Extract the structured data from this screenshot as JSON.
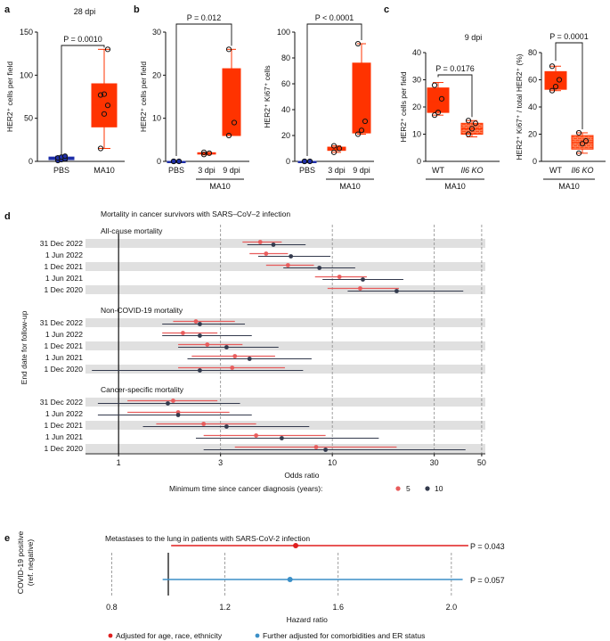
{
  "panels": {
    "a": "a",
    "b": "b",
    "c": "c",
    "d": "d",
    "e": "e"
  },
  "colors": {
    "red": "#ff3300",
    "red_fill": "#ff3300",
    "blue": "#1f2fa8",
    "d_red": "#e85c5c",
    "d_dark": "#333a4d",
    "e_red": "#e01f1f",
    "e_blue": "#3b8fc7",
    "band": "#e0e0e0"
  },
  "chart_data": [
    {
      "id": "a",
      "type": "box",
      "title": "28 dpi",
      "ylabel": "HER2⁺ cells per field",
      "ylim": [
        0,
        150
      ],
      "yticks": [
        0,
        50,
        100,
        150
      ],
      "categories": [
        "PBS",
        "MA10"
      ],
      "boxes": [
        {
          "category": "PBS",
          "min": 1,
          "q1": 2,
          "median": 3,
          "q3": 5,
          "max": 6,
          "points": [
            1,
            2,
            3,
            4,
            5,
            6
          ],
          "color": "blue"
        },
        {
          "category": "MA10",
          "min": 15,
          "q1": 40,
          "median": 65,
          "q3": 90,
          "max": 130,
          "points": [
            15,
            55,
            65,
            77,
            78,
            130
          ],
          "color": "red"
        }
      ],
      "annotations": [
        {
          "text": "P = 0.0010"
        }
      ]
    },
    {
      "id": "b1",
      "type": "box",
      "ylabel": "HER2⁺ cells per field",
      "ylim": [
        0,
        30
      ],
      "yticks": [
        0,
        10,
        20,
        30
      ],
      "categories": [
        "PBS",
        "3 dpi",
        "9 dpi"
      ],
      "group_label": "MA10",
      "boxes": [
        {
          "category": "PBS",
          "min": 0,
          "q1": 0,
          "median": 0,
          "q3": 0,
          "max": 0,
          "points": [
            0,
            0,
            0
          ],
          "color": "blue"
        },
        {
          "category": "3 dpi",
          "min": 1.5,
          "q1": 1.7,
          "median": 1.9,
          "q3": 2.0,
          "max": 2.1,
          "points": [
            1.6,
            1.9,
            2.1
          ],
          "color": "red"
        },
        {
          "category": "9 dpi",
          "min": 6,
          "q1": 6,
          "median": 9,
          "q3": 21.5,
          "max": 26,
          "points": [
            6,
            9,
            26
          ],
          "color": "red"
        }
      ],
      "annotations": [
        {
          "text": "P = 0.012"
        }
      ]
    },
    {
      "id": "b2",
      "type": "box",
      "ylabel": "HER2⁺ Ki67⁺ cells",
      "ylim": [
        0,
        100
      ],
      "yticks": [
        0,
        20,
        40,
        60,
        80,
        100
      ],
      "categories": [
        "PBS",
        "3 dpi",
        "9 dpi"
      ],
      "group_label": "MA10",
      "boxes": [
        {
          "category": "PBS",
          "min": 0,
          "q1": 0,
          "median": 0,
          "q3": 0,
          "max": 0,
          "points": [
            0,
            0,
            0
          ],
          "color": "blue"
        },
        {
          "category": "3 dpi",
          "min": 7,
          "q1": 8.5,
          "median": 10,
          "q3": 11,
          "max": 12,
          "points": [
            7,
            10,
            12
          ],
          "color": "red"
        },
        {
          "category": "9 dpi",
          "min": 21,
          "q1": 22,
          "median": 30,
          "q3": 76,
          "max": 91,
          "points": [
            21,
            24,
            31,
            91
          ],
          "color": "red"
        }
      ],
      "annotations": [
        {
          "text": "P < 0.0001"
        }
      ]
    },
    {
      "id": "c1",
      "type": "box",
      "title": "9 dpi",
      "ylabel": "HER2⁺ cells per field",
      "ylim": [
        0,
        40
      ],
      "yticks": [
        0,
        10,
        20,
        30,
        40
      ],
      "categories": [
        "WT",
        "Il6 KO"
      ],
      "group_label": "MA10",
      "boxes": [
        {
          "category": "WT",
          "min": 17,
          "q1": 18,
          "median": 22,
          "q3": 27,
          "max": 29,
          "points": [
            17,
            18,
            23,
            28
          ],
          "color": "red"
        },
        {
          "category": "Il6 KO",
          "min": 9,
          "q1": 10,
          "median": 12,
          "q3": 14,
          "max": 15,
          "points": [
            10,
            12,
            14,
            15
          ],
          "color": "red_hatch"
        }
      ],
      "annotations": [
        {
          "text": "P = 0.0176"
        }
      ]
    },
    {
      "id": "c2",
      "type": "box",
      "ylabel": "HER2⁺ Ki67⁺ / total HER2⁺ (%)",
      "ylim": [
        0,
        80
      ],
      "yticks": [
        0,
        20,
        40,
        60,
        80
      ],
      "categories": [
        "WT",
        "Il6 KO"
      ],
      "group_label": "MA10",
      "boxes": [
        {
          "category": "WT",
          "min": 52,
          "q1": 53,
          "median": 59,
          "q3": 66,
          "max": 70,
          "points": [
            52,
            55,
            60,
            70
          ],
          "color": "red"
        },
        {
          "category": "Il6 KO",
          "min": 6,
          "q1": 9,
          "median": 14,
          "q3": 19,
          "max": 21,
          "points": [
            6,
            13,
            15,
            21
          ],
          "color": "red_hatch"
        }
      ],
      "annotations": [
        {
          "text": "P = 0.0001"
        }
      ]
    },
    {
      "id": "d",
      "type": "forest",
      "title": "Mortality in cancer survivors with SARS–CoV–2 infection",
      "ylabel": "End date for follow-up",
      "xlabel": "Odds ratio",
      "xscale": "log",
      "xlim": [
        0.7,
        52
      ],
      "xticks": [
        1,
        3,
        10,
        30,
        50
      ],
      "xtick_labels": [
        "1",
        "3",
        "10",
        "30",
        "50"
      ],
      "legend_title": "Minimum time since cancer diagnosis (years):",
      "series": [
        {
          "name": "5",
          "color": "d_red"
        },
        {
          "name": "10",
          "color": "d_dark"
        }
      ],
      "groups": [
        {
          "title": "All-cause mortality",
          "rows": [
            {
              "label": "31 Dec 2022",
              "s5": [
                4.6,
                3.8,
                5.8
              ],
              "s10": [
                5.3,
                4.0,
                7.5
              ]
            },
            {
              "label": "1 Jun 2022",
              "s5": [
                4.9,
                4.1,
                6.2
              ],
              "s10": [
                6.4,
                4.5,
                9.8
              ]
            },
            {
              "label": "1 Dec 2021",
              "s5": [
                6.2,
                4.9,
                8.2
              ],
              "s10": [
                8.7,
                5.9,
                12.8
              ]
            },
            {
              "label": "1 Jun 2021",
              "s5": [
                10.8,
                8.3,
                14.5
              ],
              "s10": [
                13.9,
                9.0,
                21.5
              ]
            },
            {
              "label": "1 Dec 2020",
              "s5": [
                13.5,
                9.5,
                20.5
              ],
              "s10": [
                20.0,
                11.8,
                41.0
              ]
            }
          ]
        },
        {
          "title": "Non-COVID-19 mortality",
          "rows": [
            {
              "label": "31 Dec 2022",
              "s5": [
                2.3,
                1.8,
                3.5
              ],
              "s10": [
                2.4,
                1.6,
                3.9
              ]
            },
            {
              "label": "1 Jun 2022",
              "s5": [
                2.0,
                1.6,
                2.9
              ],
              "s10": [
                2.4,
                1.6,
                4.2
              ]
            },
            {
              "label": "1 Dec 2021",
              "s5": [
                2.6,
                1.9,
                3.8
              ],
              "s10": [
                3.2,
                1.9,
                5.6
              ]
            },
            {
              "label": "1 Jun 2021",
              "s5": [
                3.5,
                2.2,
                5.4
              ],
              "s10": [
                4.1,
                2.1,
                8.0
              ]
            },
            {
              "label": "1 Dec 2020",
              "s5": [
                3.4,
                1.9,
                6.0
              ],
              "s10": [
                2.4,
                0.75,
                7.3
              ]
            }
          ]
        },
        {
          "title": "Cancer-specific mortality",
          "rows": [
            {
              "label": "31 Dec 2022",
              "s5": [
                1.8,
                1.1,
                2.9
              ],
              "s10": [
                1.7,
                0.8,
                3.7
              ]
            },
            {
              "label": "1 Jun 2022",
              "s5": [
                1.9,
                1.1,
                3.3
              ],
              "s10": [
                1.9,
                0.8,
                4.2
              ]
            },
            {
              "label": "1 Dec 2021",
              "s5": [
                2.5,
                1.5,
                4.4
              ],
              "s10": [
                3.2,
                1.3,
                7.8
              ]
            },
            {
              "label": "1 Jun 2021",
              "s5": [
                4.4,
                2.5,
                9.3
              ],
              "s10": [
                5.8,
                2.3,
                16.5
              ]
            },
            {
              "label": "1 Dec 2020",
              "s5": [
                8.4,
                3.5,
                20.0
              ],
              "s10": [
                9.3,
                2.5,
                42.0
              ]
            }
          ]
        }
      ]
    },
    {
      "id": "e",
      "type": "forest",
      "title": "Metastases to the lung in patients with SARS-CoV-2 infection",
      "ylabel": [
        "COVID-19 positive",
        "(ref. negative)"
      ],
      "xlabel": "Hazard ratio",
      "xlim": [
        0.72,
        2.12
      ],
      "xticks": [
        0.8,
        1.2,
        1.6,
        2.0
      ],
      "xtick_labels": [
        "0.8",
        "1.2",
        "1.6",
        "2.0"
      ],
      "reference": 1.0,
      "rows": [
        {
          "estimate": 1.45,
          "low": 1.01,
          "high": 2.06,
          "p": "P = 0.043",
          "color": "e_red",
          "label": "Adjusted for age, race, ethnicity"
        },
        {
          "estimate": 1.43,
          "low": 0.98,
          "high": 2.04,
          "p": "P = 0.057",
          "color": "e_blue",
          "label": "Further adjusted for comorbidities and ER status"
        }
      ]
    }
  ]
}
